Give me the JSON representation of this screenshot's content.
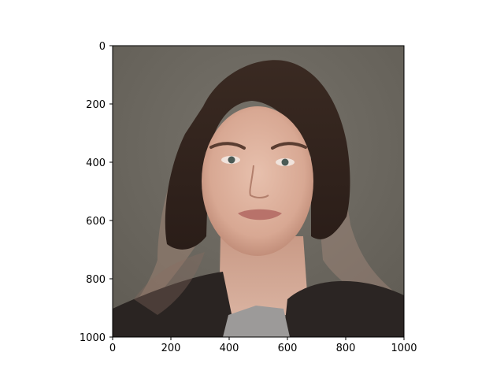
{
  "figure": {
    "background": "#ffffff",
    "image": {
      "subject": "portrait-photo",
      "extent": {
        "x": [
          0,
          1000
        ],
        "y": [
          1000,
          0
        ]
      }
    },
    "axes": {
      "x_ticks": [
        "0",
        "200",
        "400",
        "600",
        "800",
        "1000"
      ],
      "y_ticks": [
        "0",
        "200",
        "400",
        "600",
        "800",
        "1000"
      ],
      "y_inverted": true,
      "colors": {
        "frame": "#000000",
        "photo_bg": "#6f6b63"
      }
    }
  }
}
